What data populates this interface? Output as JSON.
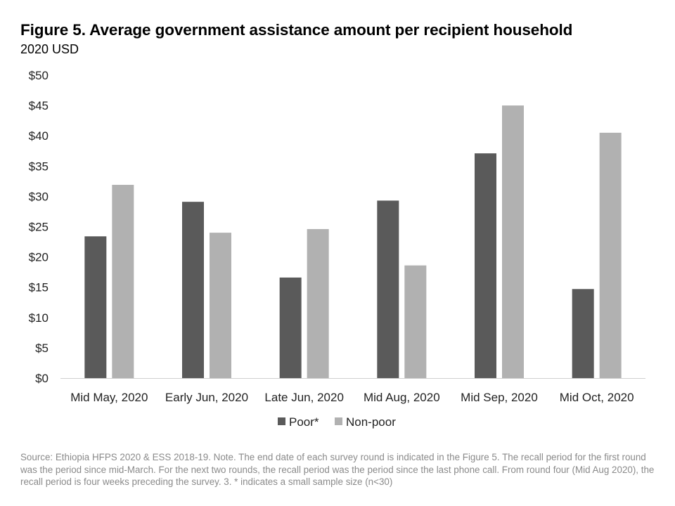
{
  "header": {
    "title": "Figure 5. Average government assistance amount per recipient household",
    "subtitle": "2020 USD"
  },
  "footnote": "Source: Ethiopia HFPS 2020 & ESS 2018-19. Note. The end date of each survey round is indicated in the Figure 5. The recall period for the first round was the period since mid-March. For the next two rounds, the recall period was the period since the last phone call. From round four (Mid Aug 2020), the recall period is four weeks preceding the survey. 3. * indicates a small sample size (n<30)",
  "chart_data": {
    "type": "bar",
    "title": "Figure 5. Average government assistance amount per recipient household",
    "subtitle": "2020 USD",
    "xlabel": "",
    "ylabel": "2020 USD",
    "ylim": [
      0,
      50
    ],
    "yticks": [
      0,
      5,
      10,
      15,
      20,
      25,
      30,
      35,
      40,
      45,
      50
    ],
    "ytick_labels": [
      "$0",
      "$5",
      "$10",
      "$15",
      "$20",
      "$25",
      "$30",
      "$35",
      "$40",
      "$45",
      "$50"
    ],
    "grid": false,
    "legend_position": "bottom-center",
    "categories": [
      "Mid May, 2020",
      "Early Jun, 2020",
      "Late Jun, 2020",
      "Mid Aug, 2020",
      "Mid Sep, 2020",
      "Mid Oct, 2020"
    ],
    "series": [
      {
        "name": "Poor*",
        "color": "#5a5a5a",
        "values": [
          23.4,
          29.1,
          16.6,
          29.3,
          37.1,
          14.7
        ]
      },
      {
        "name": "Non-poor",
        "color": "#b1b1b1",
        "values": [
          31.9,
          24.0,
          24.6,
          18.6,
          45.0,
          40.5
        ]
      }
    ]
  }
}
